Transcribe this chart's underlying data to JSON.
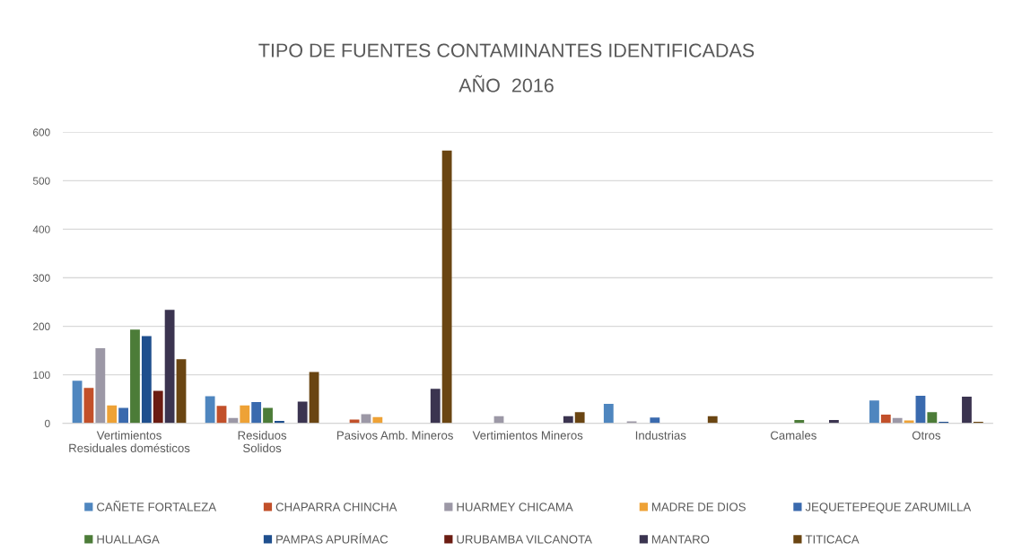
{
  "chart_data": {
    "type": "bar",
    "title": "TIPO DE FUENTES CONTAMINANTES IDENTIFICADAS",
    "subtitle": "AÑO  2016",
    "categories": [
      "Vertimientos\nResiduales domésticos",
      "Residuos\nSolidos",
      "Pasivos Amb. Mineros",
      "Vertimientos Mineros",
      "Industrias",
      "Camales",
      "Otros"
    ],
    "series": [
      {
        "name": "CAÑETE FORTALEZA",
        "color": "#4f86bf",
        "values": [
          88,
          56,
          null,
          null,
          40,
          null,
          47
        ]
      },
      {
        "name": "CHAPARRA CHINCHA",
        "color": "#c2502a",
        "values": [
          73,
          36,
          8,
          null,
          null,
          null,
          18
        ]
      },
      {
        "name": "HUARMEY CHICAMA",
        "color": "#9c98a6",
        "values": [
          155,
          11,
          19,
          15,
          4,
          null,
          11
        ]
      },
      {
        "name": "MADRE DE DIOS",
        "color": "#eea236",
        "values": [
          37,
          37,
          13,
          null,
          null,
          null,
          6
        ]
      },
      {
        "name": "JEQUETEPEQUE ZARUMILLA",
        "color": "#3a6aae",
        "values": [
          32,
          44,
          null,
          null,
          12,
          null,
          57
        ]
      },
      {
        "name": "HUALLAGA",
        "color": "#4c7c38",
        "values": [
          193,
          32,
          null,
          null,
          null,
          7,
          23
        ]
      },
      {
        "name": "PAMPAS APURÍMAC",
        "color": "#1f4f8e",
        "values": [
          180,
          5,
          null,
          null,
          null,
          null,
          3
        ]
      },
      {
        "name": "URUBAMBA VILCANOTA",
        "color": "#6b1c12",
        "values": [
          67,
          null,
          null,
          null,
          null,
          null,
          null
        ]
      },
      {
        "name": "MANTARO",
        "color": "#3b3450",
        "values": [
          234,
          45,
          71,
          15,
          null,
          7,
          55
        ]
      },
      {
        "name": "TITICACA",
        "color": "#6a4512",
        "values": [
          132,
          106,
          562,
          23,
          15,
          null,
          3
        ]
      }
    ],
    "ylim": [
      0,
      600
    ],
    "yticks": [
      0,
      100,
      200,
      300,
      400,
      500,
      600
    ],
    "grid": "y",
    "legend": "bottom"
  }
}
